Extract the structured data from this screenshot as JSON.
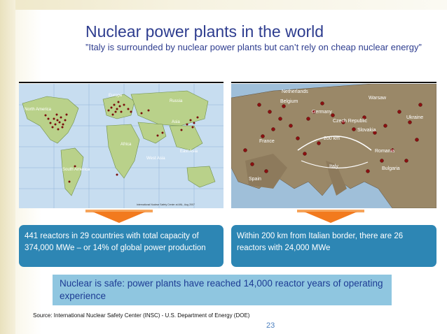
{
  "slide": {
    "title": "Nuclear power plants in the world",
    "subtitle": "”Italy is surrounded by nuclear power plants but can’t rely on cheap nuclear energy”",
    "world_map": {
      "labels": [
        "North America",
        "Europe",
        "Russia",
        "Asia",
        "Africa",
        "West Asia",
        "East Asia",
        "South America"
      ],
      "credit": "International Nuclear Safety Center at ANL, Aug 2007"
    },
    "europe_map": {
      "labels": [
        "Netherlands",
        "Belgium",
        "Germany",
        "France",
        "Czech Republic",
        "Slovakia",
        "Ukraine",
        "Romania",
        "Bulgaria",
        "Spain",
        "Italy",
        "Warsaw",
        "200 km"
      ]
    },
    "left_box": "441 reactors in 29 countries with total capacity of 374,000 MWe – or 14% of global power production",
    "right_box": "Within 200 km from Italian border, there are 26 reactors with 24,000 MWe",
    "safe_box": "Nuclear is safe: power plants have reached 14,000 reactor years of operating experience",
    "source": "Source: International Nuclear Safety Center (INSC) - U.S. Department of Energy (DOE)",
    "page_number": "23",
    "colors": {
      "title": "#2e3d8f",
      "box": "#2d86b4",
      "safe_box": "#8fc6e0",
      "arrow": "#f27a1e"
    }
  }
}
